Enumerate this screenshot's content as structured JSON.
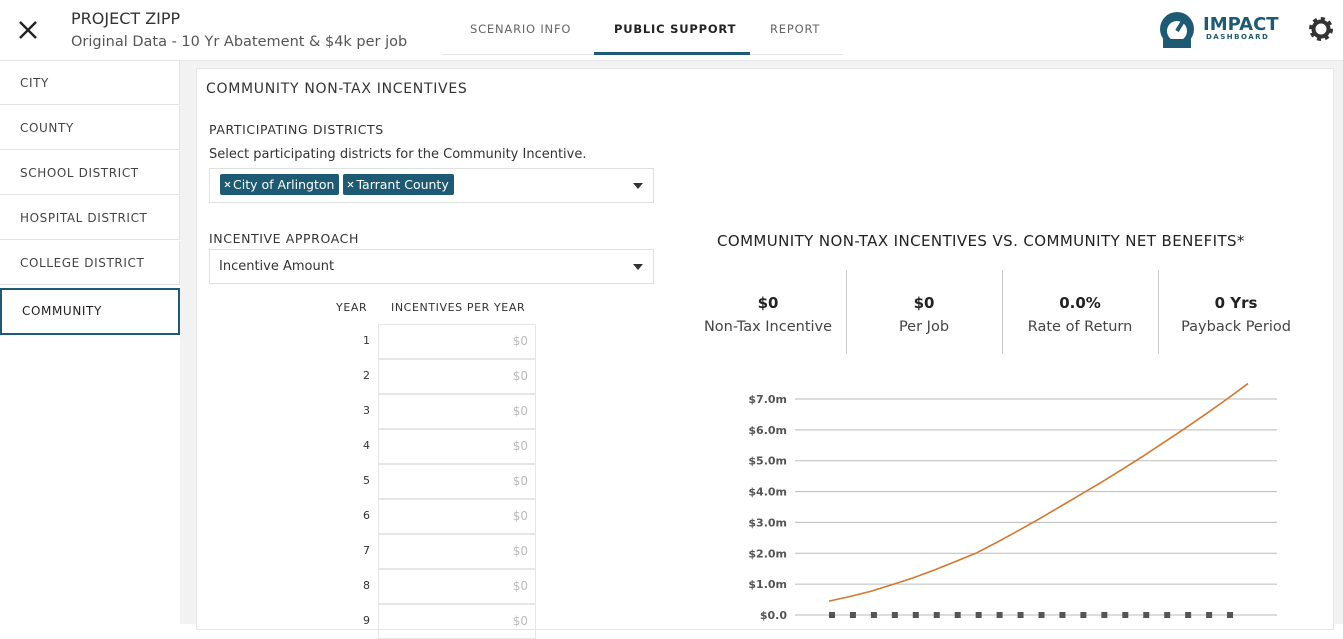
{
  "header": {
    "title": "PROJECT ZIPP",
    "subtitle": "Original Data - 10 Yr Abatement & $4k per job",
    "tabs": [
      "SCENARIO INFO",
      "PUBLIC SUPPORT",
      "REPORT"
    ],
    "logo": {
      "name": "IMPACT",
      "tagline": "DASHBOARD"
    }
  },
  "sidebar": {
    "items": [
      "CITY",
      "COUNTY",
      "SCHOOL DISTRICT",
      "HOSPITAL DISTRICT",
      "COLLEGE DISTRICT",
      "COMMUNITY"
    ]
  },
  "panel": {
    "title": "COMMUNITY NON-TAX INCENTIVES",
    "districts": {
      "label": "PARTICIPATING DISTRICTS",
      "help": "Select participating districts for the Community Incentive.",
      "tags": [
        "City of Arlington",
        "Tarrant County"
      ]
    },
    "approach": {
      "label": "INCENTIVE APPROACH",
      "value": "Incentive Amount"
    },
    "schedule": {
      "headers": [
        "YEAR",
        "INCENTIVES PER YEAR"
      ],
      "years": [
        1,
        2,
        3,
        4,
        5,
        6,
        7,
        8,
        9
      ],
      "placeholders": [
        "$0",
        "$0",
        "$0",
        "$0",
        "$0",
        "$0",
        "$0",
        "$0",
        "$0"
      ]
    }
  },
  "summary": {
    "title": "COMMUNITY NON-TAX INCENTIVES VS. COMMUNITY NET BENEFITS*",
    "stats": [
      {
        "value": "$0",
        "label": "Non-Tax Incentive"
      },
      {
        "value": "$0",
        "label": "Per Job"
      },
      {
        "value": "0.0%",
        "label": "Rate of Return"
      },
      {
        "value": "0 Yrs",
        "label": "Payback Period"
      }
    ]
  },
  "chart_data": {
    "type": "line",
    "ylim": [
      0,
      7000000
    ],
    "yticks": [
      {
        "value": 0,
        "label": "$0.0"
      },
      {
        "value": 1000000,
        "label": "$1.0m"
      },
      {
        "value": 2000000,
        "label": "$2.0m"
      },
      {
        "value": 3000000,
        "label": "$3.0m"
      },
      {
        "value": 4000000,
        "label": "$4.0m"
      },
      {
        "value": 5000000,
        "label": "$5.0m"
      },
      {
        "value": 6000000,
        "label": "$6.0m"
      },
      {
        "value": 7000000,
        "label": "$7.0m"
      }
    ],
    "grid": true,
    "series": [
      {
        "color": "#d2782f",
        "style": "solid",
        "values": [
          450000,
          600000,
          770000,
          980000,
          1200000,
          1450000,
          1720000,
          2000000,
          2350000,
          2720000,
          3100000,
          3500000,
          3900000,
          4300000,
          4720000,
          5150000,
          5600000,
          6050000,
          6520000,
          7000000,
          7500000
        ]
      },
      {
        "color": "#555555",
        "style": "dashed",
        "values": [
          0,
          0,
          0,
          0,
          0,
          0,
          0,
          0,
          0,
          0,
          0,
          0,
          0,
          0,
          0,
          0,
          0,
          0,
          0,
          0,
          0
        ]
      }
    ]
  }
}
